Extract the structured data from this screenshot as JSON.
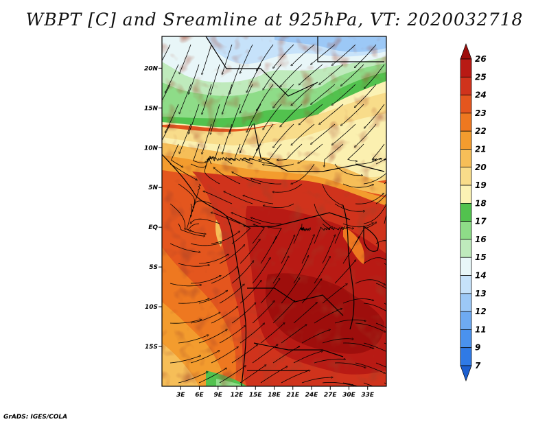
{
  "title": "WBPT [C] and Sreamline at 925hPa, VT: 2020032718",
  "footer": "GrADS: IGES/COLA",
  "map": {
    "lon_range": [
      0,
      36
    ],
    "lat_range": [
      -20,
      24
    ],
    "lat_ticks": [
      {
        "value": 20,
        "label": "20N"
      },
      {
        "value": 15,
        "label": "15N"
      },
      {
        "value": 10,
        "label": "10N"
      },
      {
        "value": 5,
        "label": "5N"
      },
      {
        "value": 0,
        "label": "EQ"
      },
      {
        "value": -5,
        "label": "5S"
      },
      {
        "value": -10,
        "label": "10S"
      },
      {
        "value": -15,
        "label": "15S"
      }
    ],
    "lon_ticks": [
      {
        "value": 3,
        "label": "3E"
      },
      {
        "value": 6,
        "label": "6E"
      },
      {
        "value": 9,
        "label": "9E"
      },
      {
        "value": 12,
        "label": "12E"
      },
      {
        "value": 15,
        "label": "15E"
      },
      {
        "value": 18,
        "label": "18E"
      },
      {
        "value": 21,
        "label": "21E"
      },
      {
        "value": 24,
        "label": "24E"
      },
      {
        "value": 27,
        "label": "27E"
      },
      {
        "value": 30,
        "label": "30E"
      },
      {
        "value": 33,
        "label": "33E"
      }
    ]
  },
  "colorbar": {
    "levels": [
      "7",
      "9",
      "11",
      "12",
      "13",
      "14",
      "15",
      "16",
      "17",
      "18",
      "19",
      "20",
      "21",
      "22",
      "23",
      "24",
      "25",
      "26"
    ],
    "colors": [
      "#1c5fd0",
      "#2f7ae6",
      "#4a92ee",
      "#6eaaf2",
      "#9cc8f6",
      "#c6e2fa",
      "#e8f6f8",
      "#bfeabc",
      "#8edc88",
      "#52c24e",
      "#fbf2b4",
      "#f8dc8a",
      "#f6be58",
      "#f39c2e",
      "#ee7820",
      "#e4561e",
      "#d0331c",
      "#b81a14",
      "#9e0e0c"
    ]
  }
}
